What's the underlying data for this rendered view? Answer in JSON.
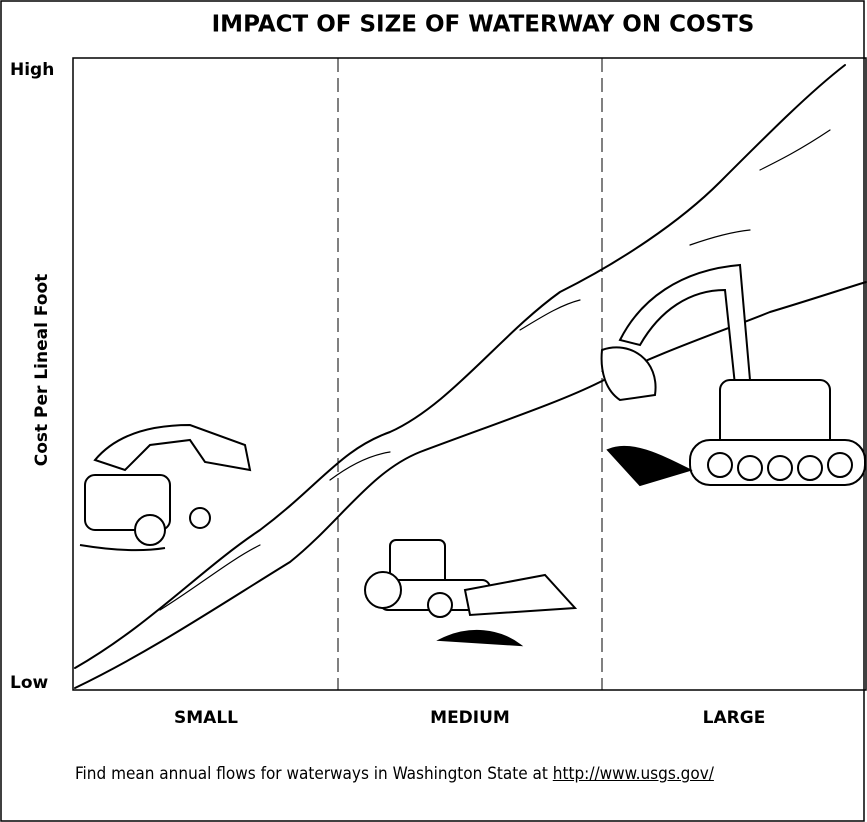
{
  "title": "IMPACT OF SIZE OF WATERWAY ON COSTS",
  "y_axis": {
    "label": "Cost Per Lineal Foot",
    "high": "High",
    "low": "Low"
  },
  "categories": [
    "SMALL",
    "MEDIUM",
    "LARGE"
  ],
  "footnote": {
    "text": "Find mean annual flows for waterways in Washington State at ",
    "link": "http://www.usgs.gov/"
  }
}
